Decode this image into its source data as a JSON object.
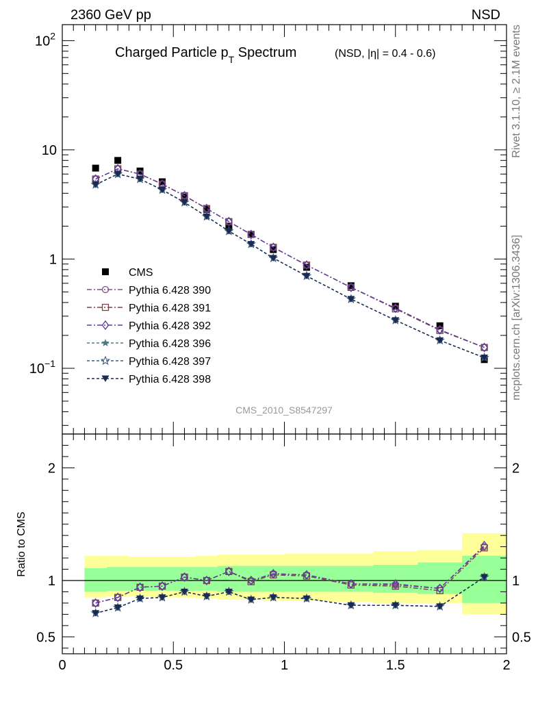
{
  "header": {
    "left_label": "2360 GeV pp",
    "right_label": "NSD"
  },
  "side_labels": {
    "rivet": "Rivet 3.1.10, ≥ 2.1M events",
    "mcplots": "mcplots.cern.ch [arXiv:1306.3436]"
  },
  "chart_data": [
    {
      "type": "scatter",
      "panel": "main",
      "title_main": "Charged Particle p",
      "title_sub": "T",
      "title_tail": " Spectrum",
      "title_extra": "(NSD, |η| = 0.4 - 0.6)",
      "watermark": "CMS_2010_S8547297",
      "yscale": "log",
      "xlim": [
        0,
        2
      ],
      "ylim": [
        0.025,
        140
      ],
      "grid": false,
      "legend_position": "lower-left",
      "y_tick_labels": [
        {
          "value": 100,
          "base": "10",
          "exp": "2"
        },
        {
          "value": 10,
          "base": "10",
          "exp": ""
        },
        {
          "value": 1,
          "base": "1",
          "exp": ""
        },
        {
          "value": 0.1,
          "base": "10",
          "exp": "−1"
        }
      ],
      "x": [
        0.15,
        0.25,
        0.35,
        0.45,
        0.55,
        0.65,
        0.75,
        0.85,
        0.95,
        1.1,
        1.3,
        1.5,
        1.7,
        1.9
      ],
      "series": [
        {
          "name": "CMS",
          "color": "#000000",
          "marker": "square",
          "dash": "none",
          "values": [
            6.8,
            8.0,
            6.4,
            5.1,
            3.7,
            2.85,
            2.0,
            1.68,
            1.22,
            0.84,
            0.57,
            0.37,
            0.245,
            0.12
          ]
        },
        {
          "name": "Pythia 6.428 390",
          "color": "#7a4e8a",
          "marker": "circle",
          "dash": "7 3 2 3",
          "values": [
            5.4,
            6.7,
            6.0,
            4.85,
            3.8,
            2.9,
            2.2,
            1.68,
            1.28,
            0.88,
            0.55,
            0.355,
            0.225,
            0.155
          ]
        },
        {
          "name": "Pythia 6.428 391",
          "color": "#7a4246",
          "marker": "square-open",
          "dash": "7 3 2 3",
          "values": [
            5.4,
            6.7,
            6.0,
            4.85,
            3.8,
            2.9,
            2.2,
            1.68,
            1.28,
            0.88,
            0.55,
            0.35,
            0.222,
            0.155
          ]
        },
        {
          "name": "Pythia 6.428 392",
          "color": "#5d3aa0",
          "marker": "diamond",
          "dash": "7 3 2 3",
          "values": [
            5.4,
            6.7,
            6.0,
            4.85,
            3.8,
            2.9,
            2.2,
            1.68,
            1.28,
            0.88,
            0.55,
            0.355,
            0.225,
            0.155
          ]
        },
        {
          "name": "Pythia 6.428 396",
          "color": "#4a7888",
          "marker": "star",
          "dash": "4 3",
          "values": [
            4.8,
            6.0,
            5.4,
            4.3,
            3.3,
            2.45,
            1.8,
            1.37,
            1.02,
            0.7,
            0.43,
            0.275,
            0.18,
            0.125
          ]
        },
        {
          "name": "Pythia 6.428 397",
          "color": "#3d5a80",
          "marker": "star-open",
          "dash": "4 3",
          "values": [
            4.8,
            6.0,
            5.4,
            4.3,
            3.3,
            2.45,
            1.8,
            1.37,
            1.02,
            0.7,
            0.43,
            0.275,
            0.18,
            0.125
          ]
        },
        {
          "name": "Pythia 6.428 398",
          "color": "#1a2a50",
          "marker": "triangle-down",
          "dash": "4 3",
          "values": [
            4.8,
            6.0,
            5.4,
            4.3,
            3.3,
            2.45,
            1.8,
            1.37,
            1.02,
            0.7,
            0.43,
            0.275,
            0.18,
            0.125
          ]
        }
      ]
    },
    {
      "type": "scatter",
      "panel": "ratio",
      "ylabel": "Ratio to CMS",
      "xlim": [
        0,
        2
      ],
      "ylim": [
        0.35,
        2.3
      ],
      "reference_line": 1,
      "grid": false,
      "y_tick_labels": [
        "0.5",
        "1",
        "2"
      ],
      "y_tick_values": [
        0.5,
        1,
        2
      ],
      "x_tick_labels": [
        "0",
        "0.5",
        "1",
        "1.5",
        "2"
      ],
      "x_tick_values": [
        0,
        0.5,
        1,
        1.5,
        2
      ],
      "bands": {
        "edges": [
          0.1,
          0.2,
          0.3,
          0.4,
          0.5,
          0.6,
          0.7,
          0.8,
          0.9,
          1.0,
          1.2,
          1.4,
          1.6,
          1.8,
          2.0
        ],
        "outer_lo": [
          0.85,
          0.86,
          0.86,
          0.85,
          0.85,
          0.84,
          0.83,
          0.83,
          0.82,
          0.82,
          0.81,
          0.8,
          0.8,
          0.7
        ],
        "outer_hi": [
          1.22,
          1.22,
          1.21,
          1.21,
          1.21,
          1.22,
          1.23,
          1.23,
          1.23,
          1.24,
          1.24,
          1.26,
          1.27,
          1.42
        ],
        "inner_lo": [
          0.9,
          0.91,
          0.91,
          0.91,
          0.91,
          0.91,
          0.9,
          0.9,
          0.9,
          0.9,
          0.9,
          0.89,
          0.88,
          0.8
        ],
        "inner_hi": [
          1.11,
          1.12,
          1.12,
          1.12,
          1.12,
          1.12,
          1.13,
          1.13,
          1.13,
          1.13,
          1.13,
          1.14,
          1.16,
          1.22
        ],
        "outer_color": "#ffff99",
        "inner_color": "#99ff99"
      },
      "x": [
        0.15,
        0.25,
        0.35,
        0.45,
        0.55,
        0.65,
        0.75,
        0.85,
        0.95,
        1.1,
        1.3,
        1.5,
        1.7,
        1.9
      ],
      "series": [
        {
          "name": "Pythia 6.428 390",
          "color": "#7a4e8a",
          "marker": "circle",
          "dash": "7 3 2 3",
          "values": [
            0.8,
            0.85,
            0.94,
            0.95,
            1.03,
            1.0,
            1.08,
            1.0,
            1.06,
            1.05,
            0.97,
            0.96,
            0.93,
            1.3
          ]
        },
        {
          "name": "Pythia 6.428 391",
          "color": "#7a4246",
          "marker": "square-open",
          "dash": "7 3 2 3",
          "values": [
            0.8,
            0.85,
            0.94,
            0.95,
            1.03,
            1.0,
            1.08,
            0.99,
            1.05,
            1.04,
            0.96,
            0.95,
            0.91,
            1.29
          ]
        },
        {
          "name": "Pythia 6.428 392",
          "color": "#5d3aa0",
          "marker": "diamond",
          "dash": "7 3 2 3",
          "values": [
            0.8,
            0.85,
            0.94,
            0.95,
            1.03,
            1.0,
            1.08,
            1.0,
            1.06,
            1.05,
            0.97,
            0.97,
            0.93,
            1.31
          ]
        },
        {
          "name": "Pythia 6.428 396",
          "color": "#4a7888",
          "marker": "star",
          "dash": "4 3",
          "values": [
            0.71,
            0.76,
            0.84,
            0.85,
            0.9,
            0.86,
            0.9,
            0.83,
            0.85,
            0.84,
            0.78,
            0.78,
            0.77,
            1.03
          ]
        },
        {
          "name": "Pythia 6.428 397",
          "color": "#3d5a80",
          "marker": "star-open",
          "dash": "4 3",
          "values": [
            0.71,
            0.76,
            0.84,
            0.85,
            0.9,
            0.86,
            0.9,
            0.83,
            0.85,
            0.84,
            0.78,
            0.78,
            0.77,
            1.03
          ]
        },
        {
          "name": "Pythia 6.428 398",
          "color": "#1a2a50",
          "marker": "triangle-down",
          "dash": "4 3",
          "values": [
            0.71,
            0.76,
            0.84,
            0.85,
            0.9,
            0.86,
            0.9,
            0.83,
            0.85,
            0.84,
            0.78,
            0.78,
            0.77,
            1.03
          ]
        }
      ]
    }
  ]
}
